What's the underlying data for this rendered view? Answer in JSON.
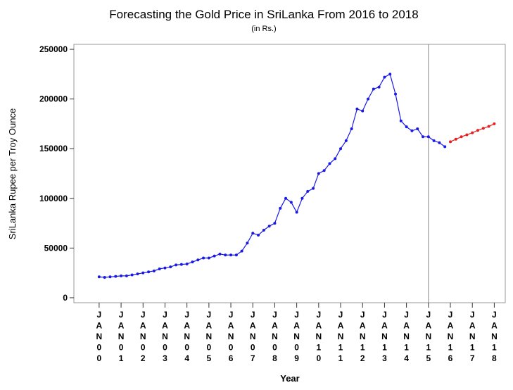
{
  "chart_data": {
    "type": "line",
    "title": "Forecasting the Gold Price in SriLanka From 2016 to 2018",
    "subtitle": "(in Rs.)",
    "y_label": "SriLanka Rupee per Troy Ounce",
    "x_label": "Year",
    "xlim": [
      1998.85,
      2018.5
    ],
    "ylim": [
      -5000,
      255000
    ],
    "yticks": [
      0,
      50000,
      100000,
      150000,
      200000,
      250000
    ],
    "xticks": [
      {
        "value": 2000,
        "label": "JAN00"
      },
      {
        "value": 2001,
        "label": "JAN01"
      },
      {
        "value": 2002,
        "label": "JAN02"
      },
      {
        "value": 2003,
        "label": "JAN03"
      },
      {
        "value": 2004,
        "label": "JAN04"
      },
      {
        "value": 2005,
        "label": "JAN05"
      },
      {
        "value": 2006,
        "label": "JAN06"
      },
      {
        "value": 2007,
        "label": "JAN07"
      },
      {
        "value": 2008,
        "label": "JAN08"
      },
      {
        "value": 2009,
        "label": "JAN09"
      },
      {
        "value": 2010,
        "label": "JAN10"
      },
      {
        "value": 2011,
        "label": "JAN11"
      },
      {
        "value": 2012,
        "label": "JAN12"
      },
      {
        "value": 2013,
        "label": "JAN13"
      },
      {
        "value": 2014,
        "label": "JAN14"
      },
      {
        "value": 2015,
        "label": "JAN15"
      },
      {
        "value": 2016,
        "label": "JAN16"
      },
      {
        "value": 2017,
        "label": "JAN17"
      },
      {
        "value": 2018,
        "label": "JAN18"
      }
    ],
    "x_reference_line": 2015,
    "series": [
      {
        "color": "#1a1ae6",
        "x": [
          2000,
          2000.25,
          2000.5,
          2000.75,
          2001,
          2001.25,
          2001.5,
          2001.75,
          2002,
          2002.25,
          2002.5,
          2002.75,
          2003,
          2003.25,
          2003.5,
          2003.75,
          2004,
          2004.25,
          2004.5,
          2004.75,
          2005,
          2005.25,
          2005.5,
          2005.75,
          2006,
          2006.25,
          2006.5,
          2006.75,
          2007,
          2007.25,
          2007.5,
          2007.75,
          2008,
          2008.25,
          2008.5,
          2008.75,
          2009,
          2009.25,
          2009.5,
          2009.75,
          2010,
          2010.25,
          2010.5,
          2010.75,
          2011,
          2011.25,
          2011.5,
          2011.75,
          2012,
          2012.25,
          2012.5,
          2012.75,
          2013,
          2013.25,
          2013.5,
          2013.75,
          2014,
          2014.25,
          2014.5,
          2014.75,
          2015,
          2015.25,
          2015.5,
          2015.75
        ],
        "values": [
          21000,
          20500,
          21000,
          21500,
          22000,
          22000,
          23000,
          24000,
          25000,
          26000,
          27000,
          29000,
          30000,
          31000,
          33000,
          33500,
          34000,
          36000,
          38000,
          40000,
          40000,
          42000,
          44000,
          43000,
          43000,
          43000,
          47000,
          55000,
          65000,
          63000,
          68000,
          72000,
          75000,
          90000,
          100000,
          96000,
          86000,
          100000,
          107000,
          110000,
          125000,
          128000,
          135000,
          140000,
          150000,
          158000,
          170000,
          190000,
          188000,
          200000,
          210000,
          212000,
          222000,
          225000,
          205000,
          178000,
          172000,
          168000,
          170000,
          162000,
          162000,
          158000,
          156000,
          152000
        ]
      },
      {
        "color": "#e62020",
        "x": [
          2016,
          2016.25,
          2016.5,
          2016.75,
          2017,
          2017.25,
          2017.5,
          2017.75,
          2018
        ],
        "values": [
          157000,
          159500,
          162000,
          164000,
          166000,
          168500,
          170500,
          172500,
          175000
        ]
      }
    ]
  }
}
